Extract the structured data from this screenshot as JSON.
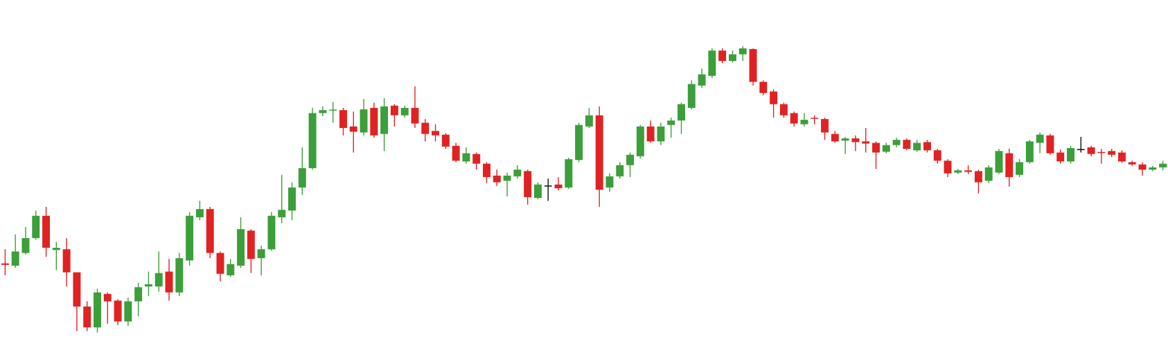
{
  "chart_data": {
    "type": "candlestick",
    "up_color": "#3b9f3a",
    "down_color": "#e02222",
    "flat_color": "#111111",
    "ylim": [
      0,
      465
    ],
    "series": {
      "open": [
        111,
        108,
        125,
        145,
        175,
        129,
        130,
        99,
        53,
        25,
        70,
        61,
        33,
        60,
        80,
        80,
        100,
        72,
        115,
        173,
        184,
        125,
        95,
        108,
        155,
        118,
        130,
        173,
        182,
        213,
        239,
        313,
        316,
        317,
        295,
        287,
        320,
        285,
        323,
        310,
        320,
        300,
        289,
        284,
        269,
        248,
        258,
        245,
        229,
        222,
        228,
        235,
        199,
        215,
        217,
        213,
        250,
        295,
        310,
        213,
        228,
        243,
        255,
        295,
        275,
        297,
        303,
        320,
        350,
        363,
        397,
        383,
        392,
        399,
        355,
        342,
        325,
        313,
        298,
        306,
        305,
        285,
        276,
        279,
        275,
        273,
        261,
        270,
        277,
        263,
        274,
        263,
        249,
        233,
        236,
        235,
        222,
        233,
        259,
        230,
        247,
        273,
        283,
        260,
        248,
        264,
        267,
        260,
        262,
        260,
        247,
        244,
        237,
        240
      ],
      "high": [
        130,
        150,
        160,
        182,
        187,
        140,
        145,
        99,
        60,
        77,
        72,
        63,
        65,
        85,
        100,
        127,
        117,
        125,
        180,
        195,
        187,
        127,
        117,
        173,
        157,
        135,
        180,
        230,
        220,
        267,
        320,
        322,
        328,
        320,
        315,
        332,
        327,
        333,
        325,
        323,
        349,
        305,
        298,
        286,
        273,
        267,
        260,
        247,
        237,
        233,
        243,
        237,
        220,
        225,
        227,
        253,
        300,
        320,
        322,
        232,
        247,
        260,
        297,
        303,
        300,
        307,
        327,
        357,
        373,
        400,
        400,
        397,
        403,
        400,
        357,
        345,
        327,
        315,
        313,
        310,
        307,
        289,
        281,
        283,
        293,
        275,
        273,
        280,
        279,
        277,
        277,
        265,
        251,
        238,
        243,
        237,
        243,
        265,
        265,
        251,
        277,
        287,
        285,
        264,
        269,
        281,
        269,
        265,
        265,
        263,
        249,
        247,
        242,
        249
      ],
      "low": [
        95,
        105,
        123,
        143,
        120,
        102,
        80,
        20,
        20,
        18,
        30,
        28,
        27,
        40,
        67,
        73,
        61,
        67,
        108,
        169,
        118,
        87,
        93,
        105,
        98,
        95,
        128,
        165,
        169,
        203,
        237,
        309,
        300,
        283,
        260,
        283,
        280,
        262,
        295,
        307,
        293,
        275,
        275,
        265,
        247,
        245,
        237,
        219,
        215,
        201,
        225,
        190,
        197,
        195,
        209,
        211,
        247,
        293,
        187,
        207,
        225,
        227,
        252,
        273,
        270,
        280,
        285,
        318,
        347,
        360,
        380,
        381,
        383,
        350,
        337,
        307,
        307,
        295,
        295,
        298,
        277,
        273,
        258,
        262,
        260,
        238,
        259,
        267,
        263,
        261,
        260,
        245,
        227,
        231,
        231,
        205,
        219,
        231,
        214,
        227,
        245,
        259,
        257,
        245,
        245,
        260,
        255,
        245,
        254,
        246,
        242,
        229,
        235,
        236
      ],
      "close": [
        109,
        127,
        145,
        175,
        132,
        132,
        99,
        53,
        25,
        72,
        60,
        33,
        60,
        79,
        83,
        98,
        72,
        118,
        175,
        184,
        125,
        97,
        110,
        157,
        117,
        130,
        175,
        183,
        213,
        239,
        313,
        317,
        317,
        293,
        288,
        318,
        283,
        322,
        310,
        320,
        299,
        285,
        283,
        268,
        249,
        259,
        245,
        227,
        220,
        229,
        237,
        200,
        217,
        215,
        212,
        251,
        297,
        310,
        210,
        228,
        243,
        257,
        295,
        275,
        295,
        303,
        325,
        352,
        365,
        397,
        383,
        392,
        400,
        355,
        340,
        325,
        310,
        299,
        304,
        305,
        287,
        275,
        279,
        274,
        272,
        260,
        270,
        277,
        265,
        273,
        263,
        249,
        232,
        236,
        234,
        220,
        240,
        262,
        227,
        247,
        275,
        284,
        259,
        248,
        266,
        264,
        258,
        259,
        257,
        248,
        244,
        237,
        240,
        245
      ]
    }
  }
}
